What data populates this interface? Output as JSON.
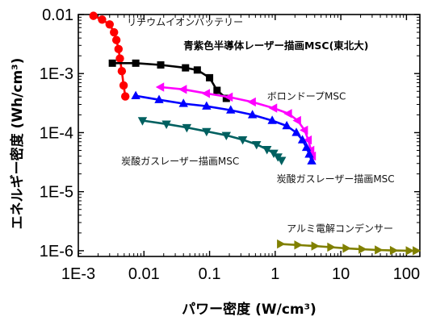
{
  "chart_data": {
    "type": "scatter",
    "title": "",
    "xlabel": "パワー密度 (W/cm³)",
    "ylabel": "エネルギー密度 (Wh/cm³)",
    "xscale": "log",
    "yscale": "log",
    "xlim": [
      0.001,
      160
    ],
    "ylim": [
      8e-07,
      0.01
    ],
    "x_ticks": [
      "1E-3",
      "0.01",
      "0.1",
      "1",
      "10",
      "100"
    ],
    "y_ticks": [
      "0.01",
      "1E-3",
      "1E-4",
      "1E-5",
      "1E-6"
    ],
    "grid": false,
    "legend": "none",
    "series": [
      {
        "name": "リチウムイオンバッテリー",
        "color": "#ff0000",
        "marker": "circle",
        "points": [
          [
            0.0017,
            0.0095
          ],
          [
            0.0023,
            0.0082
          ],
          [
            0.003,
            0.0068
          ],
          [
            0.0035,
            0.005
          ],
          [
            0.0038,
            0.0037
          ],
          [
            0.0041,
            0.0026
          ],
          [
            0.0043,
            0.0018
          ],
          [
            0.0046,
            0.0011
          ],
          [
            0.0049,
            0.00063
          ],
          [
            0.0052,
            0.00041
          ]
        ]
      },
      {
        "name": "青紫色半導体レーザー描画MSC(東北大)",
        "color": "#000000",
        "marker": "square",
        "points": [
          [
            0.0033,
            0.0015
          ],
          [
            0.0075,
            0.0015
          ],
          [
            0.018,
            0.0014
          ],
          [
            0.043,
            0.00125
          ],
          [
            0.065,
            0.00115
          ],
          [
            0.1,
            0.00085
          ],
          [
            0.13,
            0.00052
          ],
          [
            0.18,
            0.00038
          ]
        ]
      },
      {
        "name": "ボロンドープMSC",
        "color": "#ff00ff",
        "marker": "triangle-left",
        "points": [
          [
            0.018,
            0.00059
          ],
          [
            0.04,
            0.00054
          ],
          [
            0.09,
            0.00046
          ],
          [
            0.2,
            0.0004
          ],
          [
            0.45,
            0.00033
          ],
          [
            0.95,
            0.00026
          ],
          [
            1.6,
            0.00021
          ],
          [
            2.2,
            0.00016
          ],
          [
            2.8,
            0.00011
          ],
          [
            3.2,
            7.5e-05
          ],
          [
            3.5,
            5e-05
          ],
          [
            3.7,
            4e-05
          ]
        ]
      },
      {
        "name": "炭酸ガスレーザー描画MSC",
        "color": "#0000ff",
        "marker": "triangle-up",
        "points": [
          [
            0.0075,
            0.00042
          ],
          [
            0.017,
            0.00036
          ],
          [
            0.04,
            0.00031
          ],
          [
            0.09,
            0.00028
          ],
          [
            0.21,
            0.00024
          ],
          [
            0.45,
            0.0002
          ],
          [
            0.9,
            0.00016
          ],
          [
            1.5,
            0.00013
          ],
          [
            2.1,
            0.0001
          ],
          [
            2.6,
            7.5e-05
          ],
          [
            3.0,
            5.6e-05
          ],
          [
            3.3,
            4.3e-05
          ],
          [
            3.6,
            3.3e-05
          ]
        ]
      },
      {
        "name": "炭酸ガスレーザー描画MSC",
        "color": "#006060",
        "marker": "triangle-down",
        "points": [
          [
            0.0095,
            0.00016
          ],
          [
            0.022,
            0.00014
          ],
          [
            0.045,
            0.000122
          ],
          [
            0.09,
            0.000105
          ],
          [
            0.18,
            9e-05
          ],
          [
            0.32,
            7.6e-05
          ],
          [
            0.52,
            6.3e-05
          ],
          [
            0.75,
            5.2e-05
          ],
          [
            0.95,
            4.5e-05
          ],
          [
            1.1,
            3.9e-05
          ],
          [
            1.25,
            3.4e-05
          ]
        ]
      },
      {
        "name": "アルミ電解コンデンサー",
        "color": "#808000",
        "marker": "triangle-right",
        "points": [
          [
            1.2,
            1.3e-06
          ],
          [
            2.2,
            1.25e-06
          ],
          [
            4,
            1.2e-06
          ],
          [
            7,
            1.15e-06
          ],
          [
            12,
            1.1e-06
          ],
          [
            21,
            1.06e-06
          ],
          [
            37,
            1.03e-06
          ],
          [
            63,
            1.01e-06
          ],
          [
            110,
            1e-06
          ],
          [
            140,
            1e-06
          ]
        ]
      }
    ],
    "annotations": [
      {
        "text": "リチウムイオンバッテリー",
        "style": "normal",
        "at": [
          0.0055,
          0.0065
        ]
      },
      {
        "text": "青紫色半導体レーザー描画MSC(東北大)",
        "style": "bold",
        "at": [
          0.04,
          0.0026
        ]
      },
      {
        "text": "ボロンドープMSC",
        "style": "normal",
        "at": [
          0.75,
          0.00036
        ]
      },
      {
        "text": "炭酸ガスレーザー描画MSC",
        "style": "normal",
        "at": [
          0.0045,
          2.9e-05
        ]
      },
      {
        "text": "炭酸ガスレーザー描画MSC",
        "style": "normal",
        "at": [
          1.05,
          1.45e-05
        ]
      },
      {
        "text": "アルミ電解コンデンサー",
        "style": "normal",
        "at": [
          1.5,
          2.1e-06
        ]
      }
    ]
  }
}
